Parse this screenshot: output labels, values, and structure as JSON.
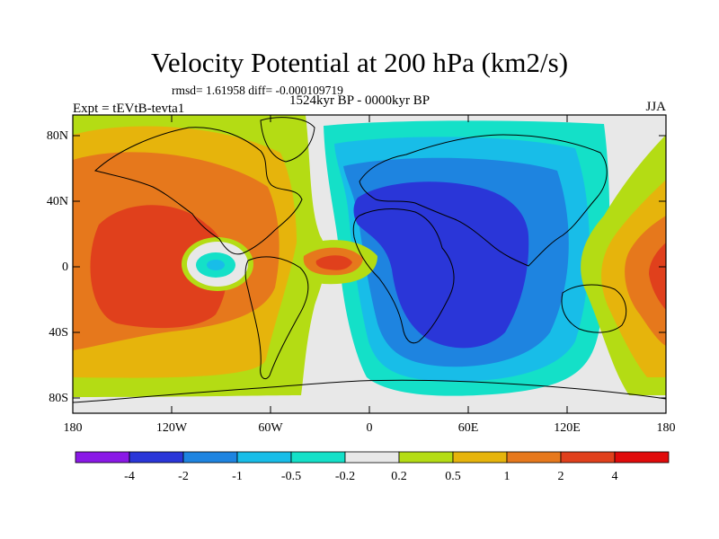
{
  "title": "Velocity Potential at 200 hPa (km2/s)",
  "stats": "rmsd= 1.61958 diff= -0.000109719",
  "period": "1524kyr BP - 0000kyr BP",
  "expt": "Expt = tEVtB-tevta1",
  "season": "JJA",
  "lat_labels": [
    "80N",
    "40N",
    "0",
    "40S",
    "80S"
  ],
  "lon_labels": [
    "180",
    "120W",
    "60W",
    "0",
    "60E",
    "120E",
    "180"
  ],
  "colorbar": {
    "labels": [
      "-4",
      "-2",
      "-1",
      "-0.5",
      "-0.2",
      "0.2",
      "0.5",
      "1",
      "2",
      "4"
    ],
    "colors": [
      "#8a19e6",
      "#2a36d8",
      "#1e84e0",
      "#18bde8",
      "#14e0c8",
      "#e8e8e8",
      "#b4dc14",
      "#e6b40c",
      "#e6781c",
      "#e0401c",
      "#e00a0a"
    ]
  },
  "palette": {
    "neg4": "#8a19e6",
    "neg2": "#2a36d8",
    "neg1": "#1e84e0",
    "neg05": "#18bde8",
    "neg02": "#14e0c8",
    "zero": "#e8e8e8",
    "pos02": "#b4dc14",
    "pos05": "#e6b40c",
    "pos1": "#e6781c",
    "pos2": "#e0401c",
    "pos4": "#e00a0a"
  }
}
